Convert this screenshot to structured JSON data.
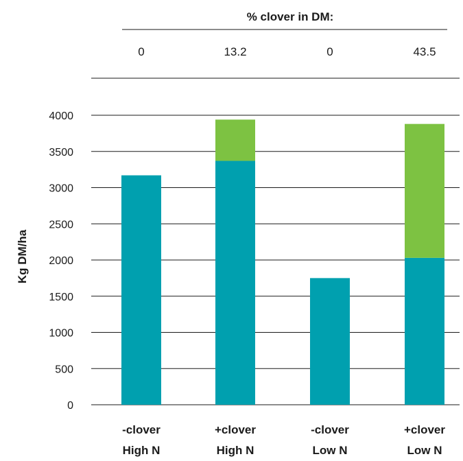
{
  "chart_data": {
    "type": "bar",
    "stacked": true,
    "title": "",
    "xlabel": "",
    "ylabel": "Kg DM/ha",
    "ylim": [
      0,
      4000
    ],
    "yticks": [
      0,
      500,
      1000,
      1500,
      2000,
      2500,
      3000,
      3500,
      4000
    ],
    "grid": true,
    "categories": [
      [
        "-clover",
        "High N"
      ],
      [
        "+clover",
        "High N"
      ],
      [
        "-clover",
        "Low N"
      ],
      [
        "+clover",
        "Low N"
      ]
    ],
    "series": [
      {
        "values": [
          3170,
          3370,
          1750,
          2030
        ],
        "color": "#00A0AF"
      },
      {
        "values": [
          0,
          570,
          0,
          1850
        ],
        "color": "#7DC242"
      }
    ],
    "header": {
      "title": "% clover in DM:",
      "values": [
        "0",
        "13.2",
        "0",
        "43.5"
      ]
    }
  }
}
